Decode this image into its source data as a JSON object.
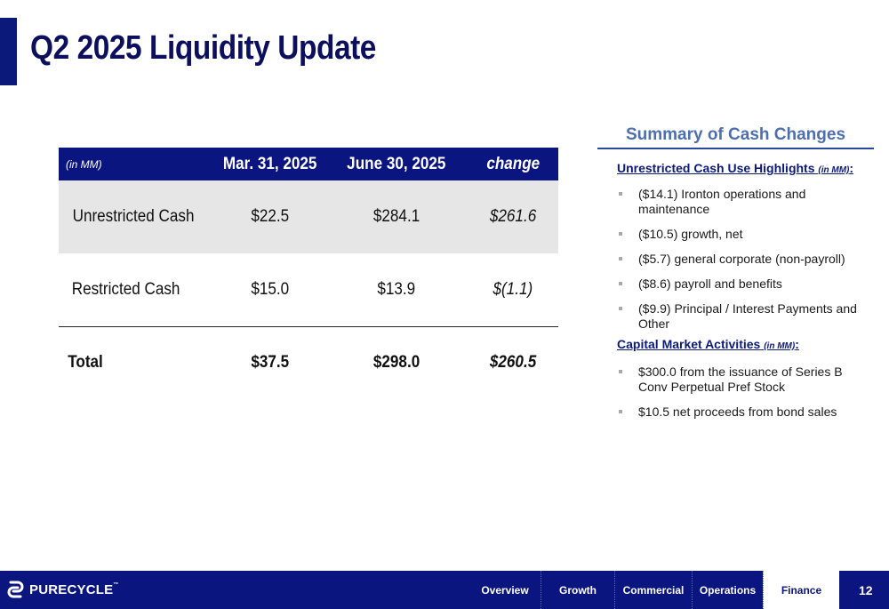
{
  "page": {
    "title": "Q2 2025 Liquidity Update",
    "page_number": "12"
  },
  "table": {
    "unit_label": "(in MM)",
    "columns": [
      "Mar. 31, 2025",
      "June 30, 2025",
      "change"
    ],
    "rows": [
      {
        "label": "Unrestricted Cash",
        "mar": "$22.5",
        "jun": "$284.1",
        "change": "$261.6"
      },
      {
        "label": "Restricted Cash",
        "mar": "$15.0",
        "jun": "$13.9",
        "change": "$(1.1)"
      },
      {
        "label": "Total",
        "mar": "$37.5",
        "jun": "$298.0",
        "change": "$260.5"
      }
    ]
  },
  "summary": {
    "title": "Summary of Cash Changes",
    "cash_use": {
      "heading": "Unrestricted Cash Use Highlights",
      "unit": "(in MM)",
      "colon": ":",
      "items": [
        "($14.1) Ironton operations and maintenance",
        "($10.5) growth, net",
        "($5.7) general corporate (non-payroll)",
        "($8.6) payroll and benefits",
        "($9.9) Principal / Interest Payments and Other"
      ]
    },
    "capital": {
      "heading": "Capital Market Activities",
      "unit": "(in MM)",
      "colon": ":",
      "items": [
        "$300.0 from the issuance of Series B Conv Perpetual Pref Stock",
        "$10.5 net proceeds from bond sales"
      ]
    }
  },
  "footer": {
    "logo_text": "PURECYCLE",
    "logo_tm": "™",
    "nav": [
      "Overview",
      "Growth",
      "Commercial",
      "Operations",
      "Finance"
    ],
    "active": "Finance"
  },
  "colors": {
    "brand_navy": "#0b1580",
    "title_navy": "#0b0f5e",
    "summary_blue": "#4d6fb0",
    "row_shade": "#e6e6e6"
  }
}
